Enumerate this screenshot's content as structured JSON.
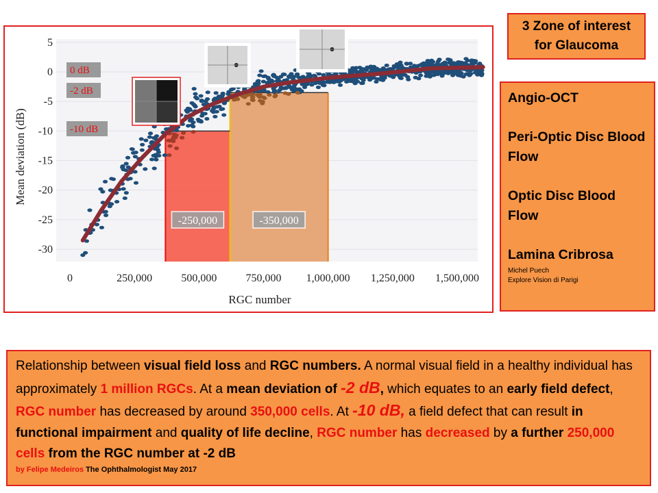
{
  "chart_data": {
    "type": "scatter",
    "xlabel": "RGC number",
    "ylabel": "Mean deviation (dB)",
    "xlim": [
      0,
      1600000
    ],
    "ylim": [
      -32,
      5
    ],
    "x_ticks": [
      "0",
      "250,000",
      "500,000",
      "750,000",
      "1,000,000",
      "1,250,000",
      "1,500,000"
    ],
    "x_tick_values": [
      0,
      250000,
      500000,
      750000,
      1000000,
      1250000,
      1500000
    ],
    "y_ticks": [
      "5",
      "0",
      "-5",
      "-10",
      "-15",
      "-20",
      "-25",
      "-30"
    ],
    "y_tick_values": [
      5,
      0,
      -5,
      -10,
      -15,
      -20,
      -25,
      -30
    ],
    "fit_line": {
      "x": [
        50000,
        120000,
        200000,
        280000,
        370000,
        460000,
        550000,
        650000,
        750000,
        850000,
        1000000,
        1200000,
        1400000,
        1600000
      ],
      "y": [
        -28.5,
        -23.5,
        -18.5,
        -14.5,
        -10.5,
        -7.5,
        -5.5,
        -3.8,
        -2.5,
        -1.8,
        -1.0,
        -0.3,
        0.6,
        0.8
      ]
    },
    "zones": [
      {
        "x_range": [
          370000,
          620000
        ],
        "y_top": -10,
        "color": "#f55b4a",
        "label": "-250,000"
      },
      {
        "x_range": [
          620000,
          1000000
        ],
        "y_top": -3.5,
        "color": "#e6a06b",
        "label": "-350,000"
      }
    ],
    "db_labels": [
      "0 dB",
      "-2 dB",
      "-10 dB"
    ],
    "colors": {
      "points": "#1f4e79",
      "fit": "#8b2c34",
      "red_zone": "#f55b4a",
      "orange_zone": "#e6a06b",
      "label_box": "#8a8a8a",
      "label_text": "#e81010"
    }
  },
  "zone_box": {
    "line1": "3 Zone of interest",
    "line2": "for Glaucoma"
  },
  "side_box": {
    "items": [
      "Angio-OCT",
      "Peri-Optic Disc Blood Flow",
      "Optic Disc Blood Flow",
      "Lamina Cribrosa"
    ],
    "author": "Michel  Puech",
    "clinic": "Explore Vision di Parigi"
  },
  "caption": {
    "segments": [
      {
        "t": "Relationship between ",
        "s": ""
      },
      {
        "t": "visual field loss",
        "s": "b"
      },
      {
        "t": " and ",
        "s": ""
      },
      {
        "t": "RGC numbers.",
        "s": "b"
      },
      {
        "t": " A normal visual field in a healthy individual has approximately ",
        "s": ""
      },
      {
        "t": "1 million RGCs",
        "s": "b r"
      },
      {
        "t": ". At a ",
        "s": ""
      },
      {
        "t": "mean deviation of ",
        "s": "b"
      },
      {
        "t": "-2 dB",
        "s": "b r big"
      },
      {
        "t": ",",
        "s": "b"
      },
      {
        "t": " which equates to an ",
        "s": ""
      },
      {
        "t": "early field defect",
        "s": "b"
      },
      {
        "t": ", ",
        "s": ""
      },
      {
        "t": "RGC number",
        "s": "b r"
      },
      {
        "t": " has decreased by around ",
        "s": ""
      },
      {
        "t": "350,000 cells",
        "s": "b r"
      },
      {
        "t": ". At ",
        "s": ""
      },
      {
        "t": "-10 dB,",
        "s": "b r big"
      },
      {
        "t": " a field defect that can result ",
        "s": ""
      },
      {
        "t": "in functional impairment",
        "s": "b"
      },
      {
        "t": " and ",
        "s": ""
      },
      {
        "t": "quality of life decline",
        "s": "b"
      },
      {
        "t": ", ",
        "s": ""
      },
      {
        "t": "RGC number",
        "s": "b r"
      },
      {
        "t": " has ",
        "s": ""
      },
      {
        "t": "decreased",
        "s": "b r"
      },
      {
        "t": " by ",
        "s": ""
      },
      {
        "t": "a further ",
        "s": "b"
      },
      {
        "t": "250,000 cells",
        "s": "b r"
      },
      {
        "t": " from the RGC number at -2 dB",
        "s": "b"
      }
    ],
    "source_author": "by Felipe Medeiros",
    "source_rest": " The Ophthalmologist  May 2017"
  }
}
